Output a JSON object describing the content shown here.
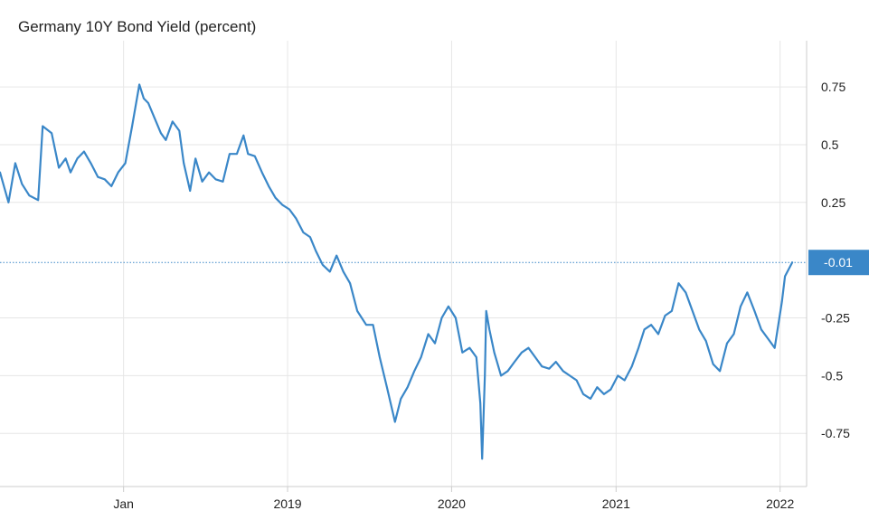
{
  "chart_data": {
    "type": "line",
    "title": "Germany 10Y Bond Yield (percent)",
    "xlabel": "",
    "ylabel": "",
    "x_ticks": [
      {
        "label": "Jan",
        "date": "2018-01-01"
      },
      {
        "label": "2019",
        "date": "2019-01-01"
      },
      {
        "label": "2020",
        "date": "2020-01-01"
      },
      {
        "label": "2021",
        "date": "2021-01-01"
      },
      {
        "label": "2022",
        "date": "2022-01-01"
      }
    ],
    "y_ticks": [
      0.75,
      0.5,
      0.25,
      -0.25,
      -0.5,
      -0.75
    ],
    "y_tick_labels": [
      "0.75",
      "0.5",
      "0.25",
      "-0.25",
      "-0.5",
      "-0.75"
    ],
    "xlim": [
      "2017-04-01",
      "2022-03-01"
    ],
    "ylim": [
      -0.98,
      0.95
    ],
    "grid": true,
    "legend": "none",
    "last_value": -0.01,
    "last_value_label": "-0.01",
    "colors": {
      "line": "#3a87c8",
      "label_bg": "#3a87c8",
      "grid": "#e6e6e6",
      "axis": "#cccccc"
    },
    "series": [
      {
        "x": [
          "2017-04-01",
          "2017-04-20",
          "2017-05-05",
          "2017-05-20",
          "2017-06-05",
          "2017-06-25",
          "2017-07-05",
          "2017-07-25",
          "2017-08-10",
          "2017-08-25",
          "2017-09-05",
          "2017-09-20",
          "2017-10-05",
          "2017-10-20",
          "2017-11-05",
          "2017-11-20",
          "2017-12-05",
          "2017-12-20",
          "2018-01-05",
          "2018-01-20",
          "2018-02-05",
          "2018-02-15",
          "2018-02-25",
          "2018-03-10",
          "2018-03-25",
          "2018-04-05",
          "2018-04-20",
          "2018-05-05",
          "2018-05-15",
          "2018-05-29",
          "2018-06-10",
          "2018-06-25",
          "2018-07-10",
          "2018-07-25",
          "2018-08-10",
          "2018-08-25",
          "2018-09-10",
          "2018-09-25",
          "2018-10-05",
          "2018-10-20",
          "2018-11-05",
          "2018-11-20",
          "2018-12-05",
          "2018-12-20",
          "2019-01-05",
          "2019-01-20",
          "2019-02-05",
          "2019-02-20",
          "2019-03-05",
          "2019-03-20",
          "2019-04-05",
          "2019-04-20",
          "2019-05-05",
          "2019-05-20",
          "2019-06-05",
          "2019-06-25",
          "2019-07-10",
          "2019-07-25",
          "2019-08-10",
          "2019-08-28",
          "2019-09-10",
          "2019-09-25",
          "2019-10-10",
          "2019-10-25",
          "2019-11-10",
          "2019-11-25",
          "2019-12-10",
          "2019-12-25",
          "2020-01-10",
          "2020-01-25",
          "2020-02-10",
          "2020-02-25",
          "2020-03-05",
          "2020-03-09",
          "2020-03-15",
          "2020-03-18",
          "2020-03-25",
          "2020-04-05",
          "2020-04-20",
          "2020-05-05",
          "2020-05-20",
          "2020-06-05",
          "2020-06-20",
          "2020-07-05",
          "2020-07-20",
          "2020-08-05",
          "2020-08-20",
          "2020-09-05",
          "2020-09-20",
          "2020-10-05",
          "2020-10-20",
          "2020-11-05",
          "2020-11-20",
          "2020-12-05",
          "2020-12-20",
          "2021-01-05",
          "2021-01-20",
          "2021-02-05",
          "2021-02-20",
          "2021-03-05",
          "2021-03-20",
          "2021-04-05",
          "2021-04-20",
          "2021-05-05",
          "2021-05-20",
          "2021-06-05",
          "2021-06-20",
          "2021-07-05",
          "2021-07-20",
          "2021-08-05",
          "2021-08-20",
          "2021-09-05",
          "2021-09-20",
          "2021-10-05",
          "2021-10-20",
          "2021-11-05",
          "2021-11-20",
          "2021-12-05",
          "2021-12-20",
          "2022-01-05",
          "2022-01-12",
          "2022-01-20",
          "2022-01-28"
        ],
        "values": [
          0.38,
          0.25,
          0.42,
          0.33,
          0.28,
          0.26,
          0.58,
          0.55,
          0.4,
          0.44,
          0.38,
          0.44,
          0.47,
          0.42,
          0.36,
          0.35,
          0.32,
          0.38,
          0.42,
          0.58,
          0.76,
          0.7,
          0.68,
          0.62,
          0.55,
          0.52,
          0.6,
          0.56,
          0.42,
          0.3,
          0.44,
          0.34,
          0.38,
          0.35,
          0.34,
          0.46,
          0.46,
          0.54,
          0.46,
          0.45,
          0.38,
          0.32,
          0.27,
          0.24,
          0.22,
          0.18,
          0.12,
          0.1,
          0.04,
          -0.02,
          -0.05,
          0.02,
          -0.05,
          -0.1,
          -0.22,
          -0.28,
          -0.28,
          -0.42,
          -0.55,
          -0.7,
          -0.6,
          -0.55,
          -0.48,
          -0.42,
          -0.32,
          -0.36,
          -0.25,
          -0.2,
          -0.25,
          -0.4,
          -0.38,
          -0.42,
          -0.62,
          -0.86,
          -0.5,
          -0.22,
          -0.3,
          -0.4,
          -0.5,
          -0.48,
          -0.44,
          -0.4,
          -0.38,
          -0.42,
          -0.46,
          -0.47,
          -0.44,
          -0.48,
          -0.5,
          -0.52,
          -0.58,
          -0.6,
          -0.55,
          -0.58,
          -0.56,
          -0.5,
          -0.52,
          -0.46,
          -0.38,
          -0.3,
          -0.28,
          -0.32,
          -0.24,
          -0.22,
          -0.1,
          -0.14,
          -0.22,
          -0.3,
          -0.35,
          -0.45,
          -0.48,
          -0.36,
          -0.32,
          -0.2,
          -0.14,
          -0.22,
          -0.3,
          -0.34,
          -0.38,
          -0.18,
          -0.07,
          -0.04,
          -0.01
        ]
      }
    ]
  }
}
